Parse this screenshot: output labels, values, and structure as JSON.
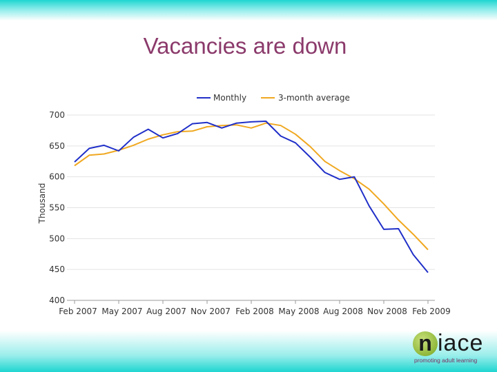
{
  "slide": {
    "title": "Vacancies are down"
  },
  "colors": {
    "monthly": "#1f2fc8",
    "average": "#f0a820",
    "title": "#8b3a6b",
    "band": "#1fd6d0"
  },
  "logo": {
    "mark": "n",
    "word": "iace",
    "tagline": "promoting adult learning"
  },
  "chart_data": {
    "type": "line",
    "title": "",
    "ylabel": "Thousand",
    "xlabel": "",
    "ylim": [
      400,
      700
    ],
    "yticks": [
      400,
      450,
      500,
      550,
      600,
      650,
      700
    ],
    "x_tick_labels": [
      "Feb 2007",
      "May 2007",
      "Aug 2007",
      "Nov 2007",
      "Feb 2008",
      "May 2008",
      "Aug 2008",
      "Nov 2008",
      "Feb 2009"
    ],
    "x": [
      "Feb 2007",
      "Mar 2007",
      "Apr 2007",
      "May 2007",
      "Jun 2007",
      "Jul 2007",
      "Aug 2007",
      "Sep 2007",
      "Oct 2007",
      "Nov 2007",
      "Dec 2007",
      "Jan 2008",
      "Feb 2008",
      "Mar 2008",
      "Apr 2008",
      "May 2008",
      "Jun 2008",
      "Jul 2008",
      "Aug 2008",
      "Sep 2008",
      "Oct 2008",
      "Nov 2008",
      "Dec 2008",
      "Jan 2009",
      "Feb 2009"
    ],
    "legend_position": "top",
    "grid": true,
    "series": [
      {
        "name": "Monthly",
        "values": [
          624,
          646,
          651,
          642,
          664,
          677,
          663,
          670,
          686,
          688,
          679,
          687,
          689,
          690,
          666,
          655,
          632,
          607,
          596,
          600,
          553,
          515,
          516,
          474,
          445
        ]
      },
      {
        "name": "3-month average",
        "values": [
          618,
          635,
          637,
          643,
          651,
          661,
          668,
          673,
          674,
          681,
          683,
          684,
          679,
          687,
          683,
          669,
          649,
          625,
          610,
          597,
          580,
          556,
          530,
          507,
          482
        ]
      }
    ]
  }
}
